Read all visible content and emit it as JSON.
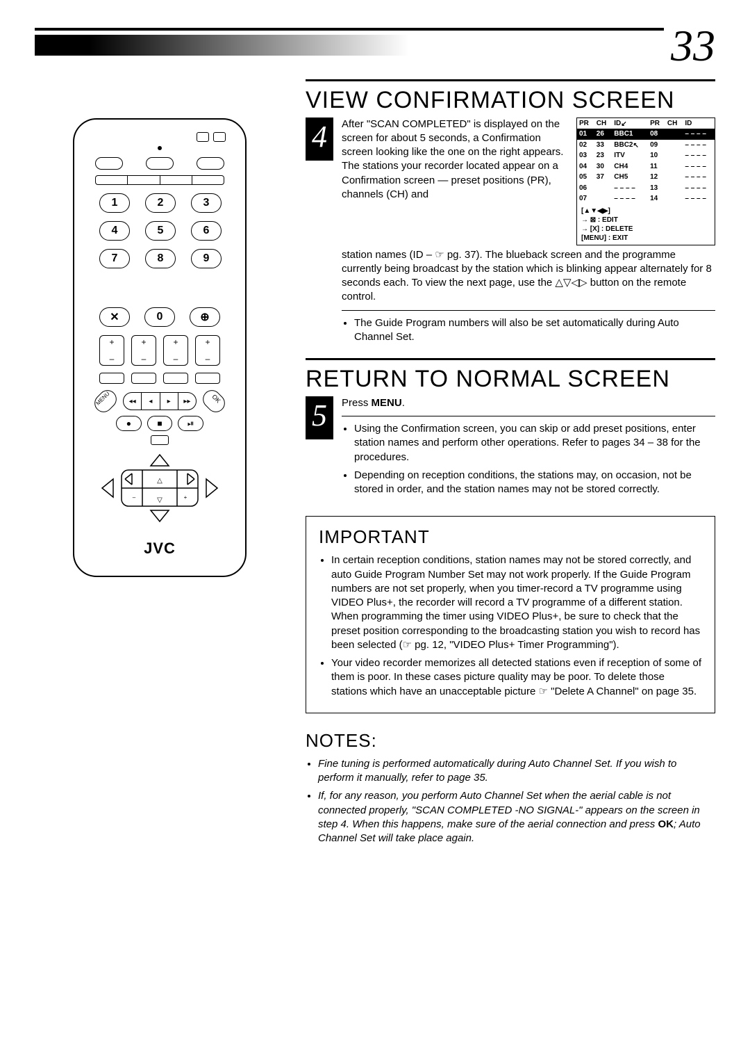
{
  "page_number": "33",
  "brand": "JVC",
  "remote": {
    "keypad": [
      "1",
      "2",
      "3",
      "4",
      "5",
      "6",
      "7",
      "8",
      "9"
    ],
    "row_x": [
      "✕",
      "0",
      "⊕"
    ],
    "side_left": "MENU",
    "side_right": "OK",
    "strip": [
      "◂◂",
      "◂",
      "▸",
      "▸▸"
    ],
    "bot": [
      "●",
      "■",
      "⏯"
    ]
  },
  "section4": {
    "title": "VIEW CONFIRMATION SCREEN",
    "step_num": "4",
    "lead_text": "After \"SCAN COMPLETED\" is displayed on the screen for about 5 seconds, a Confirmation screen looking like the one on the right appears. The stations your recorder located appear on a Confirmation screen — preset positions (PR), channels (CH) and",
    "tail_text": "station names (ID – ☞ pg. 37). The blueback screen and the programme currently being broadcast by the station which is blinking appear alternately for 8 seconds each. To view the next page, use the △▽◁▷ button on the remote control.",
    "bullet": "The Guide Program numbers will also be set automatically during Auto Channel Set.",
    "table": {
      "headers_left": [
        "PR",
        "CH",
        "ID"
      ],
      "headers_right": [
        "PR",
        "CH",
        "ID"
      ],
      "rows": [
        {
          "pr": "01",
          "ch": "26",
          "id": "BBC1",
          "pr2": "08",
          "ch2": "",
          "id2": "– – – –",
          "hl": true
        },
        {
          "pr": "02",
          "ch": "33",
          "id": "BBC2",
          "pr2": "09",
          "ch2": "",
          "id2": "– – – –"
        },
        {
          "pr": "03",
          "ch": "23",
          "id": "ITV",
          "pr2": "10",
          "ch2": "",
          "id2": "– – – –"
        },
        {
          "pr": "04",
          "ch": "30",
          "id": "CH4",
          "pr2": "11",
          "ch2": "",
          "id2": "– – – –"
        },
        {
          "pr": "05",
          "ch": "37",
          "id": "CH5",
          "pr2": "12",
          "ch2": "",
          "id2": "– – – –"
        },
        {
          "pr": "06",
          "ch": "",
          "id": "– – – –",
          "pr2": "13",
          "ch2": "",
          "id2": "– – – –"
        },
        {
          "pr": "07",
          "ch": "",
          "id": "– – – –",
          "pr2": "14",
          "ch2": "",
          "id2": "– – – –"
        }
      ],
      "footer": [
        "[▲▼◀▶]",
        "→ ⊠ : EDIT",
        "→ [X] : DELETE",
        "   [MENU] : EXIT"
      ]
    }
  },
  "section5": {
    "title": "RETURN TO NORMAL SCREEN",
    "step_num": "5",
    "press": "Press ",
    "press_bold": "MENU",
    "press_end": ".",
    "bullets": [
      "Using the Confirmation screen, you can skip or add preset positions, enter station names and perform other operations. Refer to pages 34 – 38 for the procedures.",
      "Depending on reception conditions, the stations may, on occasion, not be stored in order, and the station names may not be stored correctly."
    ]
  },
  "important": {
    "title": "IMPORTANT",
    "bullets": [
      "In certain reception conditions, station names may not be stored correctly, and auto Guide Program Number Set may not work properly. If the Guide Program numbers are not set properly, when you timer-record a TV programme using VIDEO Plus+, the recorder will record a TV programme of a different station. When programming the timer using VIDEO Plus+, be sure to check that the preset position corresponding to the broadcasting station you wish to record has been selected (☞ pg. 12, \"VIDEO Plus+ Timer Programming\").",
      "Your video recorder memorizes all detected stations even if reception of some of them is poor. In these cases picture quality may be poor. To delete those stations which have an unacceptable picture ☞ \"Delete A Channel\" on page 35."
    ]
  },
  "notes": {
    "title": "NOTES:",
    "items": [
      "Fine tuning is performed automatically during Auto Channel Set. If you wish to perform it manually, refer to page 35.",
      "If, for any reason, you perform Auto Channel Set when the aerial cable is not connected properly, \"SCAN COMPLETED -NO SIGNAL-\" appears on the screen in step 4. When this happens, make sure of the aerial connection and press OK; Auto Channel Set will take place again."
    ],
    "bold_ok": "OK"
  }
}
